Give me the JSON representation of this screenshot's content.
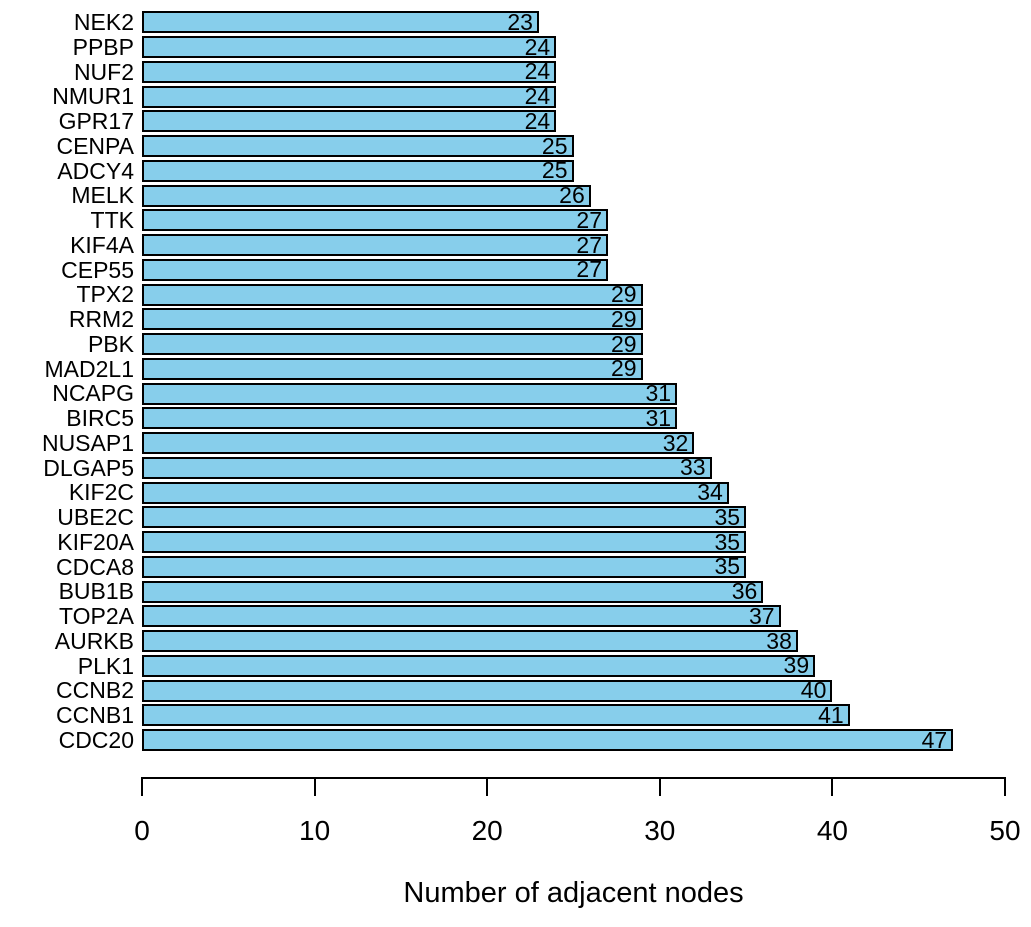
{
  "chart_data": {
    "type": "bar",
    "orientation": "horizontal",
    "title": "",
    "xlabel": "Number of adjacent nodes",
    "ylabel": "",
    "categories": [
      "NEK2",
      "PPBP",
      "NUF2",
      "NMUR1",
      "GPR17",
      "CENPA",
      "ADCY4",
      "MELK",
      "TTK",
      "KIF4A",
      "CEP55",
      "TPX2",
      "RRM2",
      "PBK",
      "MAD2L1",
      "NCAPG",
      "BIRC5",
      "NUSAP1",
      "DLGAP5",
      "KIF2C",
      "UBE2C",
      "KIF20A",
      "CDCA8",
      "BUB1B",
      "TOP2A",
      "AURKB",
      "PLK1",
      "CCNB2",
      "CCNB1",
      "CDC20"
    ],
    "values": [
      23,
      24,
      24,
      24,
      24,
      25,
      25,
      26,
      27,
      27,
      27,
      29,
      29,
      29,
      29,
      31,
      31,
      32,
      33,
      34,
      35,
      35,
      35,
      36,
      37,
      38,
      39,
      40,
      41,
      47
    ],
    "value_labels_position": "inside-right",
    "xlim": [
      0,
      50
    ],
    "x_ticks": [
      "0",
      "10",
      "20",
      "30",
      "40",
      "50"
    ],
    "x_tick_values": [
      0,
      10,
      20,
      30,
      40,
      50
    ],
    "grid": false,
    "legend": "none",
    "colors": {
      "bar_fill": "#87CEEB",
      "bar_border": "#000000",
      "axis": "#000000",
      "text": "#000000",
      "background": "#FFFFFF"
    }
  }
}
